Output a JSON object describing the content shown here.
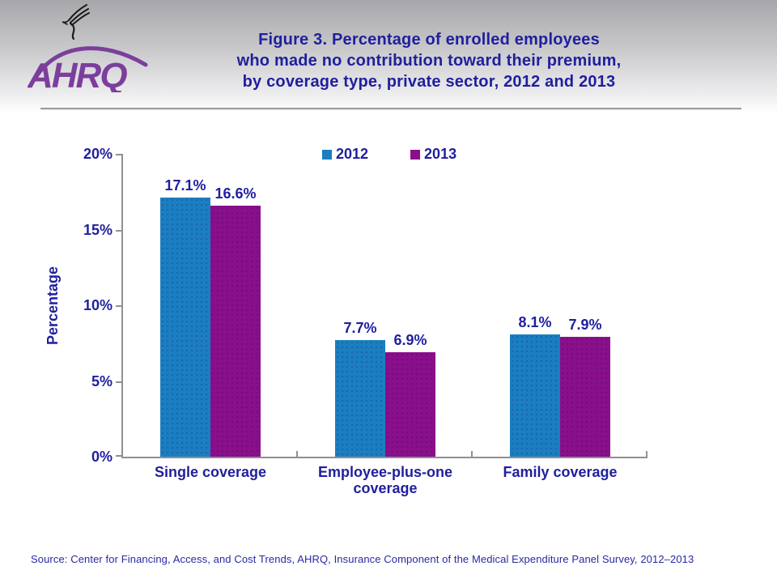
{
  "colors": {
    "header_gradient_top": "#A7A7AB",
    "series_2012": "#1B7EC0",
    "series_2013": "#8A0F8A",
    "heading_text": "#1F1F9E",
    "chart_text": "#1F1F9E",
    "source_text": "#2929A3",
    "axis_line": "#909090",
    "logo_purple": "#7B3F9B",
    "divider": "#9B9B9B"
  },
  "header": {
    "eagle_icon": "hhs-eagle",
    "logo_text": "AHRQ",
    "title_lines": [
      "Figure 3. Percentage of enrolled employees",
      "who made no contribution toward their premium,",
      "by coverage type, private sector, 2012 and 2013"
    ]
  },
  "chart_data": {
    "type": "bar",
    "title": "Figure 3. Percentage of enrolled employees who made no contribution toward their premium, by coverage type, private sector, 2012 and 2013",
    "categories": [
      "Single coverage",
      "Employee-plus-one coverage",
      "Family coverage"
    ],
    "series": [
      {
        "name": "2012",
        "color": "#1B7EC0",
        "values": [
          17.1,
          7.7,
          8.1
        ]
      },
      {
        "name": "2013",
        "color": "#8A0F8A",
        "values": [
          16.6,
          6.9,
          7.9
        ]
      }
    ],
    "value_labels": [
      [
        "17.1%",
        "7.7%",
        "8.1%"
      ],
      [
        "16.6%",
        "6.9%",
        "7.9%"
      ]
    ],
    "xlabel": "",
    "ylabel": "Percentage",
    "ylim": [
      0,
      20
    ],
    "yticks": [
      0,
      5,
      10,
      15,
      20
    ],
    "ytick_labels": [
      "0%",
      "5%",
      "10%",
      "15%",
      "20%"
    ],
    "legend_position": "top-center",
    "grid": false
  },
  "footer": {
    "source": "Source: Center for Financing, Access, and Cost Trends, AHRQ, Insurance Component of the Medical Expenditure Panel Survey, 2012–2013"
  }
}
